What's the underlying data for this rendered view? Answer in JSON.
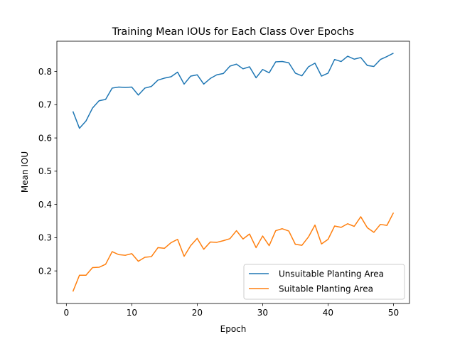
{
  "chart_data": {
    "type": "line",
    "title": "Training Mean IOUs for Each Class Over Epochs",
    "xlabel": "Epoch",
    "ylabel": "Mean IOU",
    "xlim": [
      -1.45,
      52.45
    ],
    "ylim": [
      0.102,
      0.891
    ],
    "xticks": [
      0,
      10,
      20,
      30,
      40,
      50
    ],
    "yticks": [
      0.2,
      0.3,
      0.4,
      0.5,
      0.6,
      0.7,
      0.8
    ],
    "ytick_labels": [
      "0.2",
      "0.3",
      "0.4",
      "0.5",
      "0.6",
      "0.7",
      "0.8"
    ],
    "grid": false,
    "legend_position": "lower right",
    "x": [
      1,
      2,
      3,
      4,
      5,
      6,
      7,
      8,
      9,
      10,
      11,
      12,
      13,
      14,
      15,
      16,
      17,
      18,
      19,
      20,
      21,
      22,
      23,
      24,
      25,
      26,
      27,
      28,
      29,
      30,
      31,
      32,
      33,
      34,
      35,
      36,
      37,
      38,
      39,
      40,
      41,
      42,
      43,
      44,
      45,
      46,
      47,
      48,
      49,
      50
    ],
    "series": [
      {
        "name": "Unsuitable Planting Area",
        "color": "#1f77b4",
        "values": [
          0.68,
          0.629,
          0.651,
          0.69,
          0.712,
          0.716,
          0.75,
          0.753,
          0.752,
          0.753,
          0.729,
          0.75,
          0.755,
          0.774,
          0.78,
          0.784,
          0.798,
          0.762,
          0.786,
          0.79,
          0.762,
          0.779,
          0.79,
          0.794,
          0.816,
          0.822,
          0.808,
          0.814,
          0.781,
          0.806,
          0.796,
          0.829,
          0.83,
          0.826,
          0.795,
          0.787,
          0.814,
          0.825,
          0.786,
          0.795,
          0.836,
          0.83,
          0.846,
          0.837,
          0.842,
          0.818,
          0.815,
          0.836,
          0.845,
          0.855
        ]
      },
      {
        "name": "Suitable Planting Area",
        "color": "#ff7f0e",
        "values": [
          0.138,
          0.187,
          0.187,
          0.21,
          0.211,
          0.22,
          0.258,
          0.249,
          0.247,
          0.252,
          0.229,
          0.241,
          0.243,
          0.27,
          0.268,
          0.285,
          0.295,
          0.244,
          0.276,
          0.298,
          0.265,
          0.287,
          0.286,
          0.291,
          0.297,
          0.321,
          0.296,
          0.311,
          0.27,
          0.305,
          0.276,
          0.321,
          0.327,
          0.32,
          0.28,
          0.277,
          0.302,
          0.338,
          0.281,
          0.295,
          0.335,
          0.331,
          0.342,
          0.334,
          0.363,
          0.33,
          0.316,
          0.34,
          0.337,
          0.375
        ]
      }
    ]
  }
}
